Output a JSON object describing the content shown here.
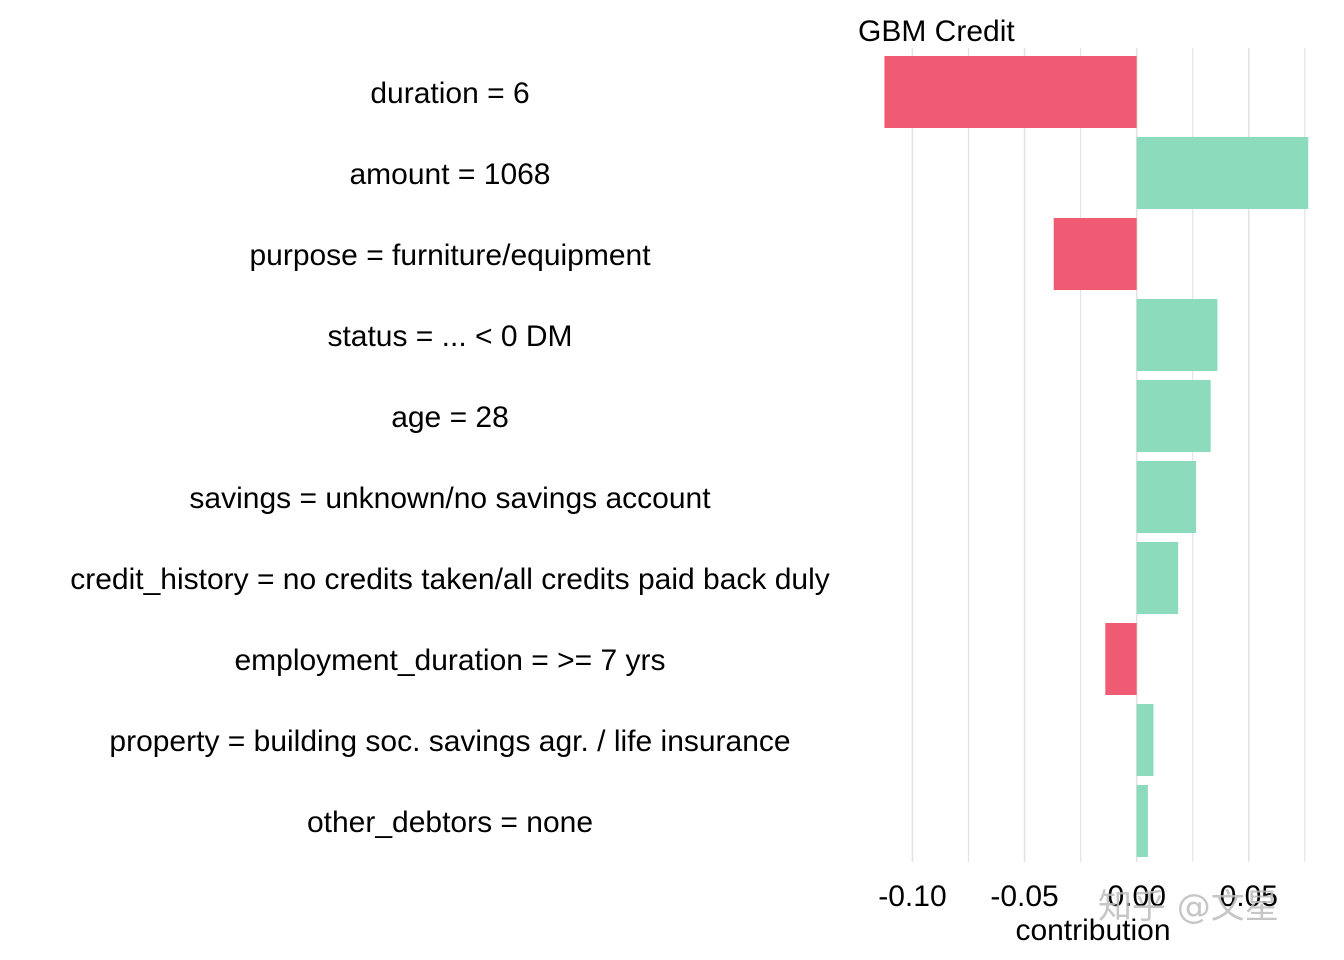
{
  "chart_data": {
    "type": "bar",
    "orientation": "horizontal",
    "title": "GBM Credit",
    "xlabel": "contribution",
    "ylabel": "",
    "xlim": [
      -0.1225,
      0.0764
    ],
    "x_ticks": [
      -0.1,
      -0.05,
      0.0,
      0.05
    ],
    "x_tick_labels": [
      "-0.10",
      "-0.05",
      "0.00",
      "0.05"
    ],
    "x_minor_ticks": [
      -0.075,
      -0.025,
      0.025,
      0.075
    ],
    "grid": true,
    "legend": "none",
    "categories": [
      "duration = 6",
      "amount = 1068",
      "purpose = furniture/equipment",
      "status = ... < 0 DM",
      "age = 28",
      "savings = unknown/no savings account",
      "credit_history = no credits taken/all credits paid back duly",
      "employment_duration = >= 7 yrs",
      "property = building soc. savings agr. / life insurance",
      "other_debtors = none"
    ],
    "values": [
      -0.1125,
      0.0765,
      -0.037,
      0.036,
      0.033,
      0.0265,
      0.0185,
      -0.014,
      0.0075,
      0.005
    ],
    "colors": {
      "positive": "#8ddbbd",
      "negative": "#ef5b72",
      "grid": "#e3e3e3"
    }
  },
  "watermark": "知乎 @文星"
}
